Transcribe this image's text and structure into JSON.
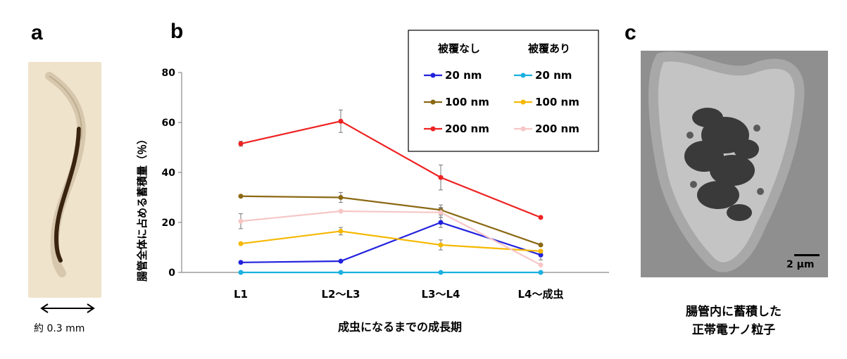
{
  "panels": {
    "a": {
      "label": "a",
      "scale_text": "約 0.3 mm"
    },
    "b": {
      "label": "b"
    },
    "c": {
      "label": "c",
      "scale_text": "2 μm",
      "caption_line1": "腸管内に蓄積した",
      "caption_line2": "正帯電ナノ粒子"
    }
  },
  "chart_data": {
    "type": "line",
    "categories": [
      "L1",
      "L2〜L3",
      "L3〜L4",
      "L4〜成虫"
    ],
    "xlabel": "成虫になるまでの成長期",
    "ylabel": "腸管全体に占める蓄積量（％）",
    "ylim": [
      0,
      80
    ],
    "yticks": [
      0,
      20,
      40,
      60,
      80
    ],
    "legend_placement": "top-right",
    "legend_headers": [
      "被覆なし",
      "被覆あり"
    ],
    "series": [
      {
        "name": "20 nm",
        "group": "被覆なし",
        "color": "#2222dd",
        "values": [
          4,
          4.5,
          20,
          7
        ],
        "errors": [
          0,
          0,
          2,
          2
        ]
      },
      {
        "name": "100 nm",
        "group": "被覆なし",
        "color": "#8b6914",
        "values": [
          30.5,
          30,
          25,
          11
        ],
        "errors": [
          0,
          2,
          2,
          0
        ]
      },
      {
        "name": "200 nm",
        "group": "被覆なし",
        "color": "#ee2222",
        "values": [
          51.5,
          60.5,
          38,
          22
        ],
        "errors": [
          1,
          4.5,
          5,
          0
        ]
      },
      {
        "name": "20 nm",
        "group": "被覆あり",
        "color": "#1ab0e0",
        "values": [
          0,
          0,
          0,
          0
        ],
        "errors": [
          0,
          0,
          0,
          0
        ]
      },
      {
        "name": "100 nm",
        "group": "被覆あり",
        "color": "#f5b800",
        "values": [
          11.5,
          16.5,
          11,
          8.5
        ],
        "errors": [
          0,
          1.5,
          2,
          0
        ]
      },
      {
        "name": "200 nm",
        "group": "被覆あり",
        "color": "#f7c6c6",
        "values": [
          20.5,
          24.5,
          24,
          3
        ],
        "errors": [
          3,
          0,
          2,
          0
        ]
      }
    ]
  }
}
